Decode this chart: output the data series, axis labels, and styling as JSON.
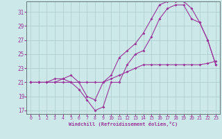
{
  "xlabel": "Windchill (Refroidissement éolien,°C)",
  "bg_color": "#cce8e8",
  "line_color": "#993399",
  "grid_color": "#aacccc",
  "xmin": 0,
  "xmax": 23,
  "ymin": 17,
  "ymax": 32,
  "yticks": [
    17,
    19,
    21,
    23,
    25,
    27,
    29,
    31
  ],
  "xticks": [
    0,
    1,
    2,
    3,
    4,
    5,
    6,
    7,
    8,
    9,
    10,
    11,
    12,
    13,
    14,
    15,
    16,
    17,
    18,
    19,
    20,
    21,
    22,
    23
  ],
  "line1_x": [
    0,
    1,
    2,
    3,
    4,
    5,
    6,
    7,
    8,
    9,
    10,
    11,
    12,
    13,
    14,
    15,
    16,
    17,
    18,
    19,
    20,
    21,
    22,
    23
  ],
  "line1_y": [
    21,
    21,
    21,
    21,
    21,
    21,
    21,
    21,
    21,
    21,
    21.5,
    22,
    22.5,
    23,
    23.5,
    23.5,
    23.5,
    23.5,
    23.5,
    23.5,
    23.5,
    23.5,
    23.7,
    24
  ],
  "line2_x": [
    0,
    1,
    2,
    3,
    4,
    5,
    6,
    7,
    8,
    9,
    10,
    11,
    12,
    13,
    14,
    15,
    16,
    17,
    18,
    19,
    20,
    21,
    22,
    23
  ],
  "line2_y": [
    21,
    21,
    21,
    21.5,
    21.5,
    21,
    20,
    18.5,
    17,
    17.5,
    21,
    21,
    23.5,
    25,
    25.5,
    27.5,
    30,
    31.5,
    32,
    32,
    30,
    29.5,
    27,
    23.5
  ],
  "line3_x": [
    0,
    1,
    2,
    3,
    4,
    5,
    6,
    7,
    8,
    9,
    10,
    11,
    12,
    13,
    14,
    15,
    16,
    17,
    18,
    19,
    20,
    21,
    22,
    23
  ],
  "line3_y": [
    21,
    21,
    21,
    21,
    21.5,
    22,
    21,
    19,
    18.5,
    21,
    22,
    24.5,
    25.5,
    26.5,
    28,
    30,
    32,
    32.5,
    32.5,
    32.5,
    31.5,
    29.5,
    27,
    23.5
  ]
}
